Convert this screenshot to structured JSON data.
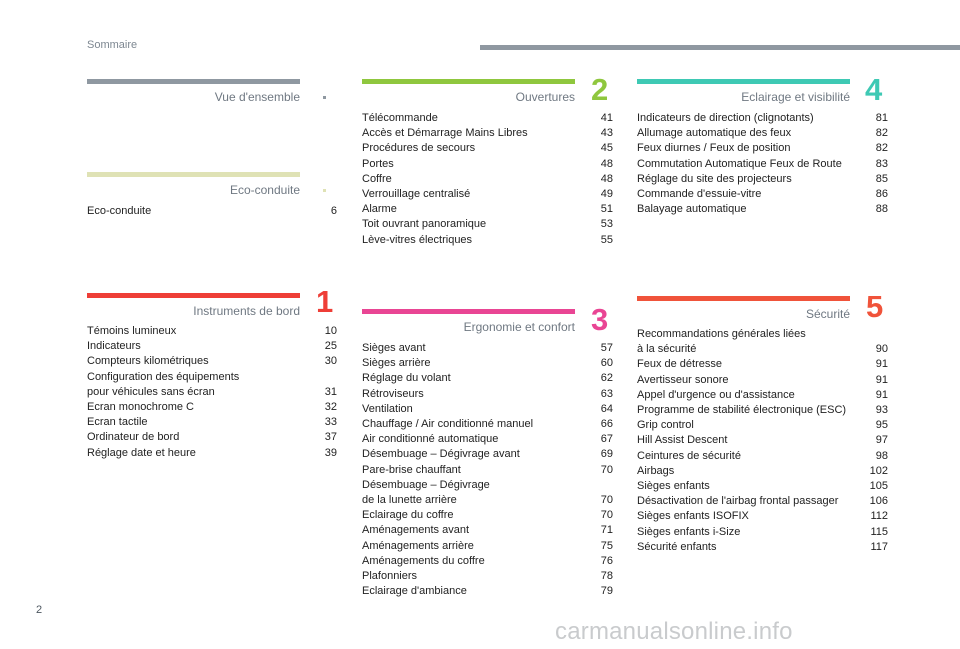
{
  "header": {
    "title": "Sommaire"
  },
  "footer": {
    "page_number": "2",
    "watermark": "carmanualsonline.info"
  },
  "sections": {
    "vue": {
      "title": "Vue d'ensemble",
      "color": "#8f98a1",
      "entries": []
    },
    "eco": {
      "title": "Eco-conduite",
      "color": "#dfe2b5",
      "entries": [
        {
          "label": "Eco-conduite",
          "page": "6"
        }
      ]
    },
    "instr": {
      "title": "Instruments de bord",
      "number": "1",
      "color": "#ee3e37",
      "entries": [
        {
          "label": "Témoins lumineux",
          "page": "10"
        },
        {
          "label": "Indicateurs",
          "page": "25"
        },
        {
          "label": "Compteurs kilométriques",
          "page": "30"
        },
        {
          "label": "Configuration des équipements\npour véhicules sans écran",
          "page": "31"
        },
        {
          "label": "Ecran monochrome C",
          "page": "32"
        },
        {
          "label": "Ecran tactile",
          "page": "33"
        },
        {
          "label": "Ordinateur de bord",
          "page": "37"
        },
        {
          "label": "Réglage date et heure",
          "page": "39"
        }
      ]
    },
    "ouv": {
      "title": "Ouvertures",
      "number": "2",
      "color": "#8fc73e",
      "entries": [
        {
          "label": "Télécommande",
          "page": "41"
        },
        {
          "label": "Accès et Démarrage Mains Libres",
          "page": "43"
        },
        {
          "label": "Procédures de secours",
          "page": "45"
        },
        {
          "label": "Portes",
          "page": "48"
        },
        {
          "label": "Coffre",
          "page": "48"
        },
        {
          "label": "Verrouillage centralisé",
          "page": "49"
        },
        {
          "label": "Alarme",
          "page": "51"
        },
        {
          "label": "Toit ouvrant panoramique",
          "page": "53"
        },
        {
          "label": "Lève-vitres électriques",
          "page": "55"
        }
      ]
    },
    "ergo": {
      "title": "Ergonomie et confort",
      "number": "3",
      "color": "#e94594",
      "entries": [
        {
          "label": "Sièges avant",
          "page": "57"
        },
        {
          "label": "Sièges arrière",
          "page": "60"
        },
        {
          "label": "Réglage du volant",
          "page": "62"
        },
        {
          "label": "Rétroviseurs",
          "page": "63"
        },
        {
          "label": "Ventilation",
          "page": "64"
        },
        {
          "label": "Chauffage / Air conditionné manuel",
          "page": "66"
        },
        {
          "label": "Air conditionné automatique",
          "page": "67"
        },
        {
          "label": "Désembuage – Dégivrage avant",
          "page": "69"
        },
        {
          "label": "Pare-brise chauffant",
          "page": "70"
        },
        {
          "label": "Désembuage – Dégivrage\nde la lunette arrière",
          "page": "70"
        },
        {
          "label": "Eclairage du coffre",
          "page": "70"
        },
        {
          "label": "Aménagements avant",
          "page": "71"
        },
        {
          "label": "Aménagements arrière",
          "page": "75"
        },
        {
          "label": "Aménagements du coffre",
          "page": "76"
        },
        {
          "label": "Plafonniers",
          "page": "78"
        },
        {
          "label": "Eclairage d'ambiance",
          "page": "79"
        }
      ]
    },
    "ecl": {
      "title": "Eclairage et visibilité",
      "number": "4",
      "color": "#3ec9b4",
      "entries": [
        {
          "label": "Indicateurs de direction (clignotants)",
          "page": "81"
        },
        {
          "label": "Allumage automatique des feux",
          "page": "82"
        },
        {
          "label": "Feux diurnes / Feux de position",
          "page": "82"
        },
        {
          "label": "Commutation Automatique Feux de Route",
          "page": "83"
        },
        {
          "label": "Réglage du site des projecteurs",
          "page": "85"
        },
        {
          "label": "Commande d'essuie-vitre",
          "page": "86"
        },
        {
          "label": "Balayage automatique",
          "page": "88"
        }
      ]
    },
    "secu": {
      "title": "Sécurité",
      "number": "5",
      "color": "#f0533a",
      "entries": [
        {
          "label": "Recommandations générales liées\nà la sécurité",
          "page": "90"
        },
        {
          "label": "Feux de détresse",
          "page": "91"
        },
        {
          "label": "Avertisseur sonore",
          "page": "91"
        },
        {
          "label": "Appel d'urgence ou d'assistance",
          "page": "91"
        },
        {
          "label": "Programme de stabilité électronique (ESC)",
          "page": "93"
        },
        {
          "label": "Grip control",
          "page": "95"
        },
        {
          "label": "Hill Assist Descent",
          "page": "97"
        },
        {
          "label": "Ceintures de sécurité",
          "page": "98"
        },
        {
          "label": "Airbags",
          "page": "102"
        },
        {
          "label": "Sièges enfants",
          "page": "105"
        },
        {
          "label": "Désactivation de l'airbag frontal passager",
          "page": "106"
        },
        {
          "label": "Sièges enfants ISOFIX",
          "page": "112"
        },
        {
          "label": "Sièges enfants i-Size",
          "page": "115"
        },
        {
          "label": "Sécurité enfants",
          "page": "117"
        }
      ]
    }
  }
}
